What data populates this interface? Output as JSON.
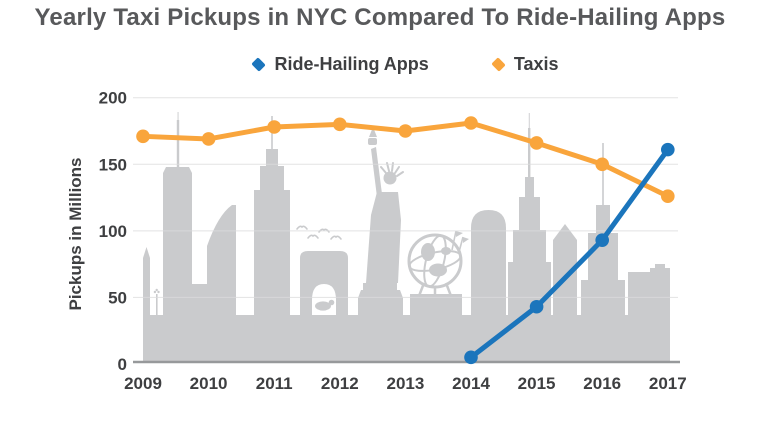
{
  "title": "Yearly Taxi Pickups in NYC Compared To Ride-Hailing Apps",
  "legend": [
    {
      "label": "Ride-Hailing Apps",
      "color": "#1B75BC"
    },
    {
      "label": "Taxis",
      "color": "#F9A53C"
    }
  ],
  "colors": {
    "gridline": "#DBDCDD",
    "axis": "#97999B",
    "tick_label": "#3E3F41",
    "title_text": "#58595B",
    "skyline": "#CACBCD"
  },
  "chart_data": {
    "type": "line",
    "title": "Yearly Taxi Pickups in NYC Compared To Ride-Hailing Apps",
    "categories": [
      "2009",
      "2010",
      "2011",
      "2012",
      "2013",
      "2014",
      "2015",
      "2016",
      "2017"
    ],
    "series": [
      {
        "name": "Ride-Hailing Apps",
        "color": "#1B75BC",
        "values": [
          null,
          null,
          null,
          null,
          null,
          5,
          43,
          93,
          161
        ]
      },
      {
        "name": "Taxis",
        "color": "#F9A53C",
        "values": [
          171,
          169,
          178,
          180,
          175,
          181,
          166,
          150,
          126
        ]
      }
    ],
    "xlabel": "",
    "ylabel": "Pickups in Millions",
    "ylim": [
      0,
      200
    ],
    "yticks": [
      0,
      50,
      100,
      150,
      200
    ],
    "grid": true,
    "legend_position": "top",
    "background": "nyc-skyline-silhouette"
  }
}
